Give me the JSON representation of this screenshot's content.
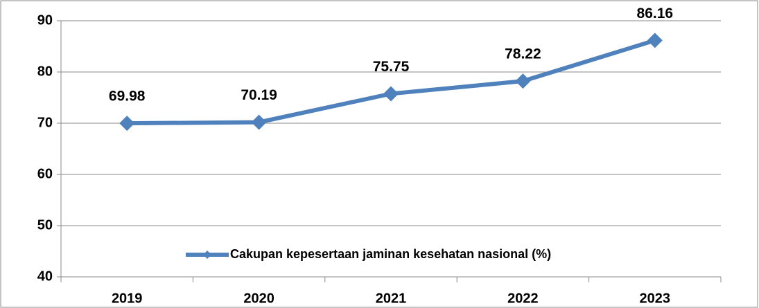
{
  "chart_data": {
    "type": "line",
    "categories": [
      "2019",
      "2020",
      "2021",
      "2022",
      "2023"
    ],
    "series": [
      {
        "name": "Cakupan kepesertaan jaminan kesehatan nasional (%)",
        "color": "#4f81bd",
        "values": [
          69.98,
          70.19,
          75.75,
          78.22,
          86.16
        ]
      }
    ],
    "ylim": [
      40,
      90
    ],
    "yticks": [
      40,
      50,
      60,
      70,
      80,
      90
    ],
    "grid": true,
    "legend": "bottom"
  }
}
